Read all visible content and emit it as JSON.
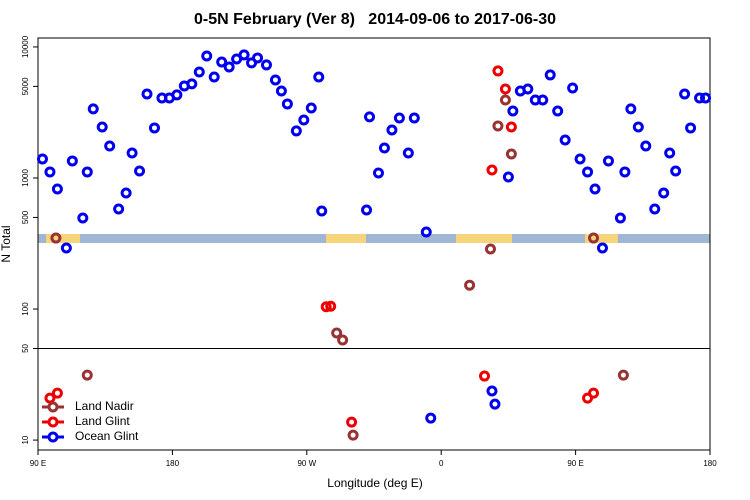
{
  "chart_data": {
    "type": "scatter",
    "title": "0-5N February (Ver 8)   2014-09-06 to 2017-06-30",
    "xlabel": "Longitude (deg E)",
    "ylabel": "N Total",
    "log_y": true,
    "legend": "lower left",
    "xlim": [
      90,
      540
    ],
    "ylim": [
      8.4,
      11700
    ],
    "xticks": [
      {
        "value": 90,
        "label": "90 E"
      },
      {
        "value": 180,
        "label": "180"
      },
      {
        "value": 270,
        "label": "90 W"
      },
      {
        "value": 360,
        "label": "0"
      },
      {
        "value": 450,
        "label": "90 E"
      },
      {
        "value": 540,
        "label": "180"
      }
    ],
    "yticks": [
      10,
      50,
      100,
      500,
      1000,
      5000,
      10000
    ],
    "hline": 50,
    "series": [
      {
        "name": "Land Nadir",
        "color": "#993333",
        "x": [
          102,
          123,
          290,
          294,
          301,
          379,
          393,
          398,
          403,
          407,
          462,
          482
        ],
        "values": [
          348,
          31.3,
          65.6,
          58.0,
          10.9,
          152,
          287,
          2495,
          3939,
          1524,
          348,
          31.3
        ]
      },
      {
        "name": "Land Glint",
        "color": "#ee0000",
        "x": [
          98,
          103,
          283,
          286,
          300,
          389,
          394,
          398,
          403,
          407,
          458,
          462
        ],
        "values": [
          20.9,
          22.8,
          104,
          105,
          13.7,
          30.8,
          1151,
          6560,
          4778,
          2449,
          20.9,
          22.8
        ]
      },
      {
        "name": "Ocean Glint",
        "color": "#0000ee",
        "x": [
          93,
          98,
          103,
          109,
          113,
          120,
          123,
          127,
          133,
          138,
          144,
          149,
          153,
          158,
          163,
          168,
          173,
          178,
          183,
          188,
          193,
          198,
          203,
          208,
          213,
          218,
          223,
          228,
          233,
          237,
          243,
          249,
          253,
          257,
          263,
          268,
          273,
          278,
          280,
          310,
          312,
          318,
          322,
          327,
          332,
          338,
          342,
          350,
          353,
          394,
          396,
          405,
          408,
          413,
          418,
          423,
          428,
          433,
          438,
          443,
          448,
          453,
          458,
          463,
          468,
          472,
          480,
          483,
          487,
          492,
          497,
          503,
          509,
          513,
          517,
          523,
          527,
          533,
          537
        ],
        "values": [
          1396,
          1112,
          824,
          292,
          1349,
          495,
          1112,
          3365,
          2449,
          1754,
          580,
          768,
          1552,
          1131,
          4377,
          2409,
          4080,
          4080,
          4303,
          5039,
          5222,
          6442,
          8531,
          5900,
          7678,
          7031,
          8094,
          8690,
          7551,
          8241,
          7290,
          5598,
          4613,
          3673,
          2286,
          2772,
          3420,
          5900,
          560,
          570,
          2924,
          1092,
          1694,
          2323,
          2871,
          1552,
          2871,
          387,
          14.7,
          23.7,
          18.8,
          1018,
          3246,
          4613,
          4778,
          3939,
          3939,
          6115,
          3246,
          1950,
          4864,
          1396,
          1112,
          824,
          292,
          1349,
          495,
          1112,
          3365,
          2449,
          1754,
          580,
          768,
          1552,
          1131,
          4377,
          2409,
          4080,
          4080
        ]
      }
    ]
  }
}
